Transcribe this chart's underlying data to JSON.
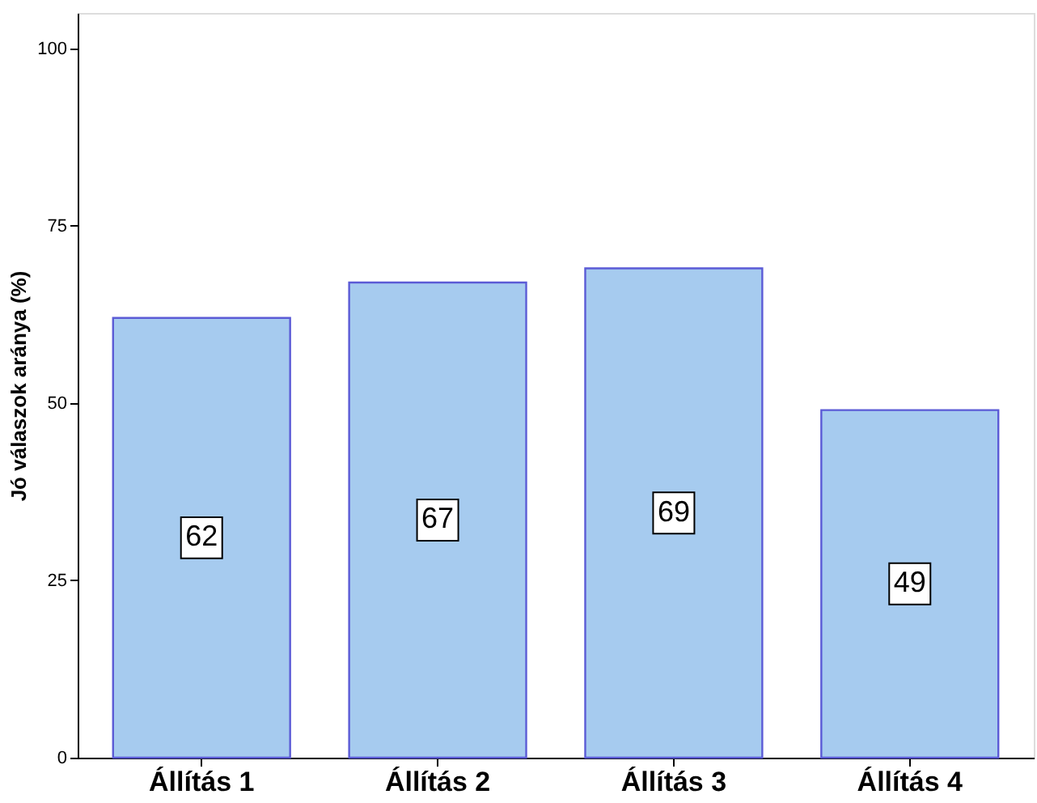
{
  "chart_data": {
    "type": "bar",
    "ylabel": "Jó válaszok aránya (%)",
    "categories": [
      "Állítás 1",
      "Állítás 2",
      "Állítás 3",
      "Állítás 4"
    ],
    "values": [
      62,
      67,
      69,
      49
    ],
    "color": "#a6cbef",
    "ylim": [
      0,
      105
    ],
    "yticks": [
      0,
      25,
      50,
      75,
      100
    ],
    "grid": false,
    "data_labels": true
  }
}
